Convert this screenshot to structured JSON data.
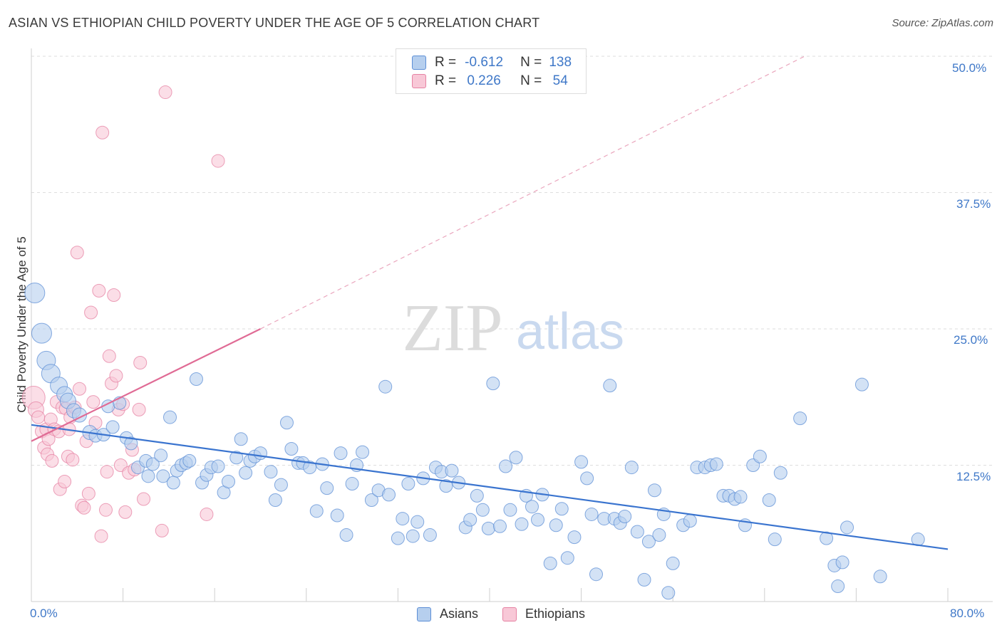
{
  "title": "ASIAN VS ETHIOPIAN CHILD POVERTY UNDER THE AGE OF 5 CORRELATION CHART",
  "source": "Source: ZipAtlas.com",
  "watermark": {
    "zip": "ZIP",
    "atlas": "atlas"
  },
  "legend_top": [
    {
      "r_label": "R =",
      "r_value": "-0.612",
      "n_label": "N =",
      "n_value": "138"
    },
    {
      "r_label": "R =",
      "r_value": "0.226",
      "n_label": "N =",
      "n_value": "54"
    }
  ],
  "legend_bottom": [
    "Asians",
    "Ethiopians"
  ],
  "colors": {
    "asian": "#5d8fd6",
    "asian_fill": "#b6cfee",
    "ethiopian": "#e682a3",
    "ethiopian_fill": "#f8c8d7",
    "axis_text": "#3f78c8"
  },
  "chart_data": {
    "type": "scatter",
    "title": "ASIAN VS ETHIOPIAN CHILD POVERTY UNDER THE AGE OF 5 CORRELATION CHART",
    "xlabel": "",
    "ylabel": "Child Poverty Under the Age of 5",
    "xlim": [
      0,
      80
    ],
    "ylim": [
      0,
      50
    ],
    "x_tick_labels": [
      "0.0%",
      "80.0%"
    ],
    "y_tick_labels": [
      "12.5%",
      "25.0%",
      "37.5%",
      "50.0%"
    ],
    "y_ticks": [
      12.5,
      25.0,
      37.5,
      50.0
    ],
    "x_ticks": [
      0,
      8,
      16,
      24,
      32,
      40,
      48,
      56,
      64,
      72,
      80
    ],
    "grid": true,
    "legend": "top-center",
    "series": [
      {
        "name": "Asians",
        "r": -0.612,
        "n": 138,
        "trend": {
          "x": [
            0,
            80
          ],
          "y": [
            16.2,
            4.8
          ]
        },
        "points": [
          [
            0.3,
            28.3,
            14
          ],
          [
            0.9,
            24.6,
            14
          ],
          [
            1.3,
            22.1,
            13
          ],
          [
            1.7,
            20.9,
            13
          ],
          [
            2.4,
            19.8,
            12
          ],
          [
            2.9,
            19.0,
            11
          ],
          [
            3.2,
            18.4,
            11
          ],
          [
            3.7,
            17.5,
            10
          ],
          [
            4.2,
            17.1,
            10
          ],
          [
            5.1,
            15.5,
            10
          ],
          [
            5.6,
            15.2,
            9
          ],
          [
            6.3,
            15.3,
            9
          ],
          [
            6.7,
            17.9,
            9
          ],
          [
            7.1,
            16.0,
            9
          ],
          [
            7.7,
            18.2,
            9
          ],
          [
            8.3,
            15.0,
            9
          ],
          [
            8.7,
            14.5,
            9
          ],
          [
            9.3,
            12.3,
            9
          ],
          [
            10.0,
            12.9,
            9
          ],
          [
            10.2,
            11.5,
            9
          ],
          [
            10.6,
            12.6,
            9
          ],
          [
            11.3,
            13.4,
            9
          ],
          [
            11.5,
            11.5,
            9
          ],
          [
            12.1,
            16.9,
            9
          ],
          [
            12.4,
            10.9,
            9
          ],
          [
            12.7,
            12.0,
            9
          ],
          [
            13.1,
            12.5,
            9
          ],
          [
            13.5,
            12.7,
            9
          ],
          [
            13.8,
            12.9,
            9
          ],
          [
            14.4,
            20.4,
            9
          ],
          [
            14.9,
            10.9,
            9
          ],
          [
            15.3,
            11.6,
            9
          ],
          [
            15.7,
            12.3,
            9
          ],
          [
            16.3,
            12.4,
            9
          ],
          [
            16.8,
            10.0,
            9
          ],
          [
            17.2,
            11.0,
            9
          ],
          [
            17.9,
            13.2,
            9
          ],
          [
            18.3,
            14.9,
            9
          ],
          [
            18.7,
            11.8,
            9
          ],
          [
            19.1,
            12.9,
            9
          ],
          [
            19.5,
            13.3,
            9
          ],
          [
            20.0,
            13.6,
            9
          ],
          [
            20.9,
            11.9,
            9
          ],
          [
            21.3,
            9.3,
            9
          ],
          [
            21.8,
            10.7,
            9
          ],
          [
            22.3,
            16.4,
            9
          ],
          [
            22.7,
            14.0,
            9
          ],
          [
            23.3,
            12.7,
            9
          ],
          [
            23.7,
            12.7,
            9
          ],
          [
            24.3,
            12.3,
            9
          ],
          [
            24.9,
            8.3,
            9
          ],
          [
            25.4,
            12.6,
            9
          ],
          [
            25.8,
            10.4,
            9
          ],
          [
            26.7,
            7.9,
            9
          ],
          [
            27.0,
            13.6,
            9
          ],
          [
            27.5,
            6.1,
            9
          ],
          [
            28.0,
            10.8,
            9
          ],
          [
            28.4,
            12.5,
            9
          ],
          [
            28.9,
            13.7,
            9
          ],
          [
            29.7,
            9.3,
            9
          ],
          [
            30.3,
            10.2,
            9
          ],
          [
            30.9,
            19.7,
            9
          ],
          [
            31.2,
            9.8,
            9
          ],
          [
            32.0,
            5.8,
            9
          ],
          [
            32.4,
            7.6,
            9
          ],
          [
            32.9,
            10.8,
            9
          ],
          [
            33.3,
            6.0,
            9
          ],
          [
            33.7,
            7.3,
            9
          ],
          [
            34.2,
            11.3,
            9
          ],
          [
            34.8,
            6.1,
            9
          ],
          [
            35.3,
            12.3,
            9
          ],
          [
            35.8,
            11.9,
            9
          ],
          [
            36.2,
            10.6,
            9
          ],
          [
            36.7,
            12.0,
            9
          ],
          [
            37.3,
            10.9,
            9
          ],
          [
            37.9,
            6.8,
            9
          ],
          [
            38.3,
            7.5,
            9
          ],
          [
            38.9,
            9.7,
            9
          ],
          [
            39.4,
            8.4,
            9
          ],
          [
            39.9,
            6.7,
            9
          ],
          [
            40.3,
            20.0,
            9
          ],
          [
            40.9,
            6.9,
            9
          ],
          [
            41.4,
            12.4,
            9
          ],
          [
            41.8,
            8.4,
            9
          ],
          [
            42.3,
            13.2,
            9
          ],
          [
            42.8,
            7.1,
            9
          ],
          [
            43.2,
            9.7,
            9
          ],
          [
            43.7,
            8.7,
            9
          ],
          [
            44.2,
            7.5,
            9
          ],
          [
            44.6,
            9.8,
            9
          ],
          [
            45.3,
            3.5,
            9
          ],
          [
            45.8,
            7.0,
            9
          ],
          [
            46.3,
            8.5,
            9
          ],
          [
            46.8,
            4.0,
            9
          ],
          [
            47.4,
            5.9,
            9
          ],
          [
            48.0,
            12.8,
            9
          ],
          [
            48.5,
            11.3,
            9
          ],
          [
            48.9,
            8.0,
            9
          ],
          [
            49.3,
            2.5,
            9
          ],
          [
            50.0,
            7.6,
            9
          ],
          [
            50.5,
            19.8,
            9
          ],
          [
            50.9,
            7.6,
            9
          ],
          [
            51.4,
            7.2,
            9
          ],
          [
            51.8,
            7.8,
            9
          ],
          [
            52.4,
            12.3,
            9
          ],
          [
            52.9,
            6.4,
            9
          ],
          [
            53.5,
            2.0,
            9
          ],
          [
            53.9,
            5.5,
            9
          ],
          [
            54.4,
            10.2,
            9
          ],
          [
            54.8,
            6.1,
            9
          ],
          [
            55.2,
            8.0,
            9
          ],
          [
            55.6,
            0.8,
            9
          ],
          [
            56.0,
            3.5,
            9
          ],
          [
            56.9,
            7.0,
            9
          ],
          [
            57.5,
            7.4,
            9
          ],
          [
            58.1,
            12.3,
            9
          ],
          [
            58.8,
            12.3,
            9
          ],
          [
            59.3,
            12.5,
            9
          ],
          [
            59.8,
            12.6,
            9
          ],
          [
            60.4,
            9.7,
            9
          ],
          [
            60.9,
            9.7,
            9
          ],
          [
            61.4,
            9.4,
            9
          ],
          [
            61.9,
            9.6,
            9
          ],
          [
            62.3,
            7.0,
            9
          ],
          [
            63.0,
            12.5,
            9
          ],
          [
            63.6,
            13.3,
            9
          ],
          [
            64.4,
            9.3,
            9
          ],
          [
            64.9,
            5.7,
            9
          ],
          [
            65.4,
            11.8,
            9
          ],
          [
            67.1,
            16.8,
            9
          ],
          [
            69.4,
            5.8,
            9
          ],
          [
            70.1,
            3.3,
            9
          ],
          [
            70.4,
            1.4,
            9
          ],
          [
            70.8,
            3.6,
            9
          ],
          [
            71.2,
            6.8,
            9
          ],
          [
            72.5,
            19.9,
            9
          ],
          [
            74.1,
            2.3,
            9
          ],
          [
            77.4,
            5.7,
            9
          ]
        ]
      },
      {
        "name": "Ethiopians",
        "r": 0.226,
        "n": 54,
        "trend": {
          "x": [
            0,
            20
          ],
          "y": [
            14.7,
            25.0
          ]
        },
        "trend_extension": {
          "x": [
            20,
            67.5
          ],
          "y": [
            25.0,
            50.0
          ]
        },
        "points": [
          [
            0.2,
            18.7,
            16
          ],
          [
            0.4,
            17.6,
            11
          ],
          [
            0.6,
            16.9,
            9
          ],
          [
            0.9,
            15.6,
            9
          ],
          [
            1.1,
            14.1,
            9
          ],
          [
            1.3,
            15.8,
            9
          ],
          [
            1.4,
            13.5,
            9
          ],
          [
            1.5,
            14.9,
            9
          ],
          [
            1.7,
            16.7,
            9
          ],
          [
            1.8,
            12.9,
            9
          ],
          [
            2.0,
            15.8,
            9
          ],
          [
            2.2,
            18.3,
            9
          ],
          [
            2.4,
            15.6,
            9
          ],
          [
            2.5,
            10.3,
            9
          ],
          [
            2.7,
            17.8,
            9
          ],
          [
            2.9,
            11.0,
            9
          ],
          [
            3.0,
            17.7,
            9
          ],
          [
            3.2,
            13.3,
            9
          ],
          [
            3.4,
            16.9,
            9
          ],
          [
            3.6,
            13.0,
            9
          ],
          [
            3.8,
            17.8,
            9
          ],
          [
            4.0,
            32.0,
            9
          ],
          [
            4.2,
            19.5,
            9
          ],
          [
            4.4,
            8.8,
            9
          ],
          [
            4.6,
            8.6,
            9
          ],
          [
            4.8,
            14.7,
            9
          ],
          [
            5.0,
            9.9,
            9
          ],
          [
            5.2,
            26.5,
            9
          ],
          [
            5.4,
            18.3,
            9
          ],
          [
            5.6,
            16.4,
            9
          ],
          [
            5.9,
            28.5,
            9
          ],
          [
            6.1,
            6.0,
            9
          ],
          [
            6.2,
            43.0,
            9
          ],
          [
            6.5,
            8.4,
            9
          ],
          [
            6.6,
            11.9,
            9
          ],
          [
            6.8,
            22.5,
            9
          ],
          [
            7.0,
            20.0,
            9
          ],
          [
            7.2,
            28.1,
            9
          ],
          [
            7.4,
            20.7,
            9
          ],
          [
            7.6,
            17.6,
            9
          ],
          [
            7.8,
            12.5,
            9
          ],
          [
            8.0,
            18.1,
            9
          ],
          [
            8.2,
            8.2,
            9
          ],
          [
            8.5,
            11.8,
            9
          ],
          [
            8.8,
            13.9,
            9
          ],
          [
            9.0,
            12.1,
            9
          ],
          [
            9.4,
            17.6,
            9
          ],
          [
            9.5,
            21.9,
            9
          ],
          [
            9.8,
            9.4,
            9
          ],
          [
            11.4,
            6.5,
            9
          ],
          [
            11.7,
            46.7,
            9
          ],
          [
            15.3,
            8.0,
            9
          ],
          [
            16.3,
            40.4,
            9
          ],
          [
            3.3,
            15.8,
            9
          ]
        ]
      }
    ]
  }
}
